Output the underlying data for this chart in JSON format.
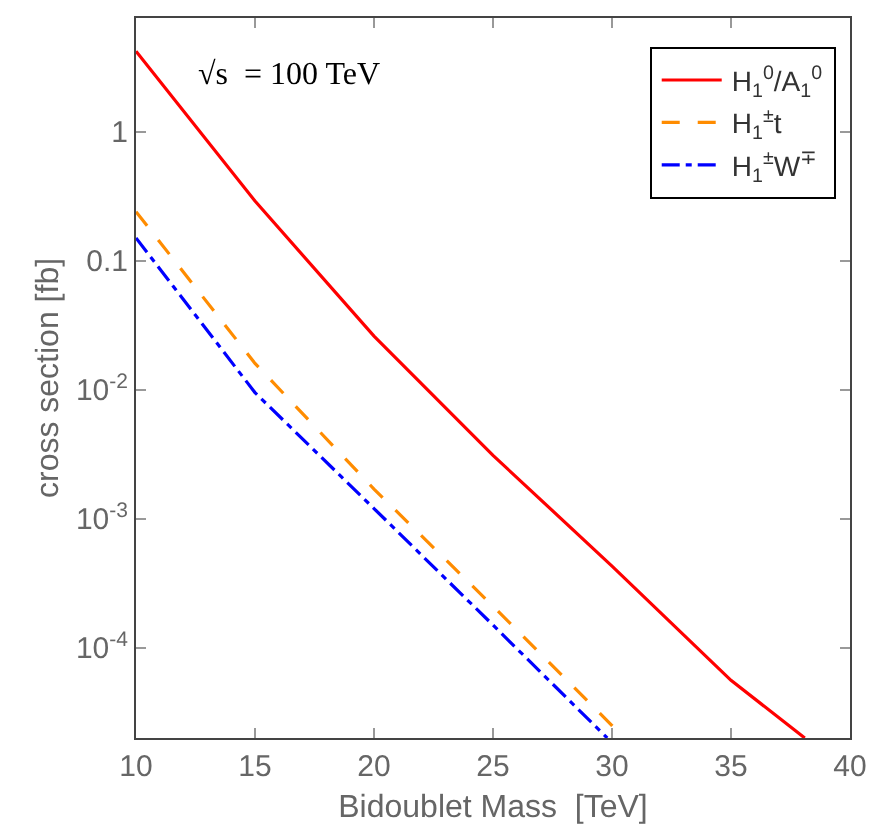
{
  "chart_data": {
    "type": "line",
    "xlabel": "Bidoublet Mass  [TeV]",
    "ylabel": "cross section [fb]",
    "annotations": [
      "√s  = 100 TeV"
    ],
    "log": "y",
    "legend": "top right",
    "marker": "none",
    "xlim": [
      10,
      40
    ],
    "xticks": [
      10,
      15,
      20,
      25,
      30,
      35,
      40
    ],
    "ylim": [
      2e-05,
      7.6
    ],
    "yticks": [
      {
        "value": 0.0001,
        "label": "10$^{-4}$"
      },
      {
        "value": 0.001,
        "label": "10$^{-3}$"
      },
      {
        "value": 0.01,
        "label": "10$^{-2}$"
      },
      0.1,
      1
    ],
    "series": [
      {
        "name": "H$_{1}$$^{0}$/A$_{1}$$^{0}$",
        "color": "#ff0000",
        "line_style": "solid",
        "x": [
          10,
          15,
          20,
          25,
          30,
          35,
          38.1
        ],
        "values": [
          4.2,
          0.29,
          0.026,
          0.0031,
          0.00043,
          5.6e-05,
          2e-05
        ]
      },
      {
        "name": "H$_{1}$$^{±}$t",
        "color": "#ff8c00",
        "line_style": "dashed",
        "x": [
          10,
          15,
          20,
          25,
          30,
          30.5
        ],
        "values": [
          0.24,
          0.016,
          0.0017,
          0.00021,
          2.5e-05,
          2e-05
        ]
      },
      {
        "name": "H$_{1}$$^{±}$W$^{∓}$",
        "color": "#0000ff",
        "line_style": "dashdot",
        "x": [
          10,
          15,
          20,
          25,
          29.8
        ],
        "values": [
          0.15,
          0.0095,
          0.0012,
          0.00015,
          2e-05
        ]
      }
    ]
  }
}
